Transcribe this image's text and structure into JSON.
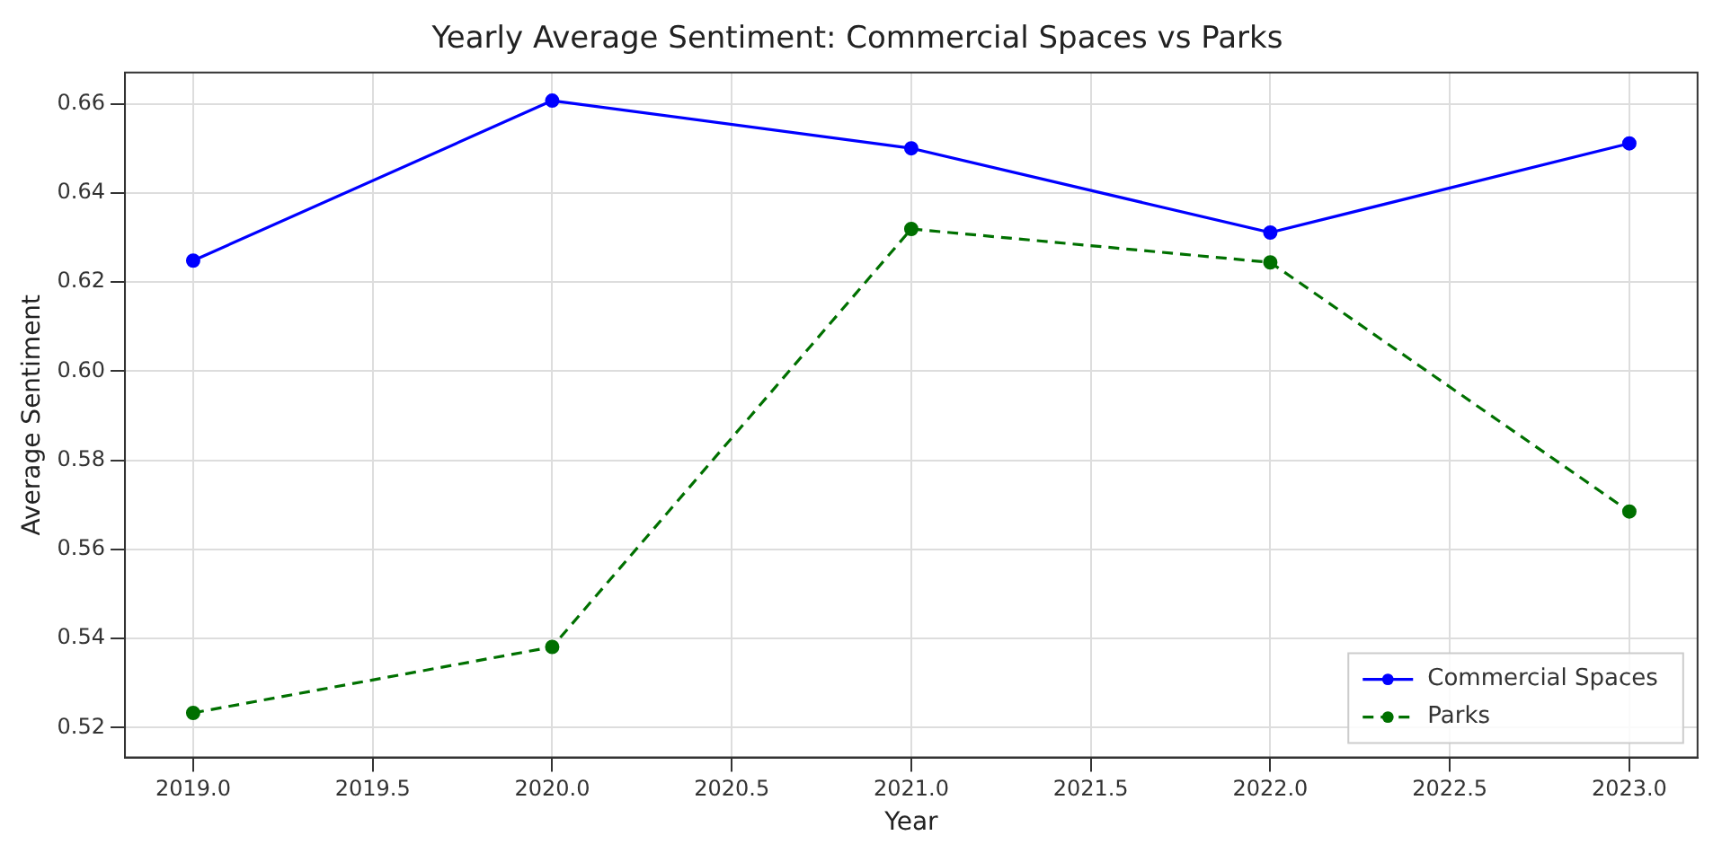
{
  "chart_data": {
    "type": "line",
    "title": "Yearly Average Sentiment: Commercial Spaces vs Parks",
    "xlabel": "Year",
    "ylabel": "Average Sentiment",
    "x": [
      2019,
      2020,
      2021,
      2022,
      2023
    ],
    "series": [
      {
        "name": "Commercial Spaces",
        "color": "#0000ff",
        "values": [
          0.6248,
          0.6607,
          0.65,
          0.6311,
          0.6511
        ],
        "line_style": "solid"
      },
      {
        "name": "Parks",
        "color": "#007000",
        "values": [
          0.5233,
          0.5381,
          0.6319,
          0.6244,
          0.5685
        ],
        "line_style": "dashed"
      }
    ],
    "xlim": [
      2018.81,
      2023.19
    ],
    "xticks": [
      {
        "value": 2019,
        "label": "2019.0"
      },
      {
        "value": 2019.5,
        "label": "2019.5"
      },
      {
        "value": 2020,
        "label": "2020.0"
      },
      {
        "value": 2020.5,
        "label": "2020.5"
      },
      {
        "value": 2021,
        "label": "2021.0"
      },
      {
        "value": 2021.5,
        "label": "2021.5"
      },
      {
        "value": 2022,
        "label": "2022.0"
      },
      {
        "value": 2022.5,
        "label": "2022.5"
      },
      {
        "value": 2023,
        "label": "2023.0"
      }
    ],
    "ylim": [
      0.5133,
      0.667
    ],
    "yticks": [
      0.52,
      0.54,
      0.56,
      0.58,
      {
        "value": 0.6,
        "label": "0.60"
      },
      0.62,
      0.64,
      0.66
    ],
    "grid": true,
    "legend": "bottom right",
    "marker": "circle"
  }
}
